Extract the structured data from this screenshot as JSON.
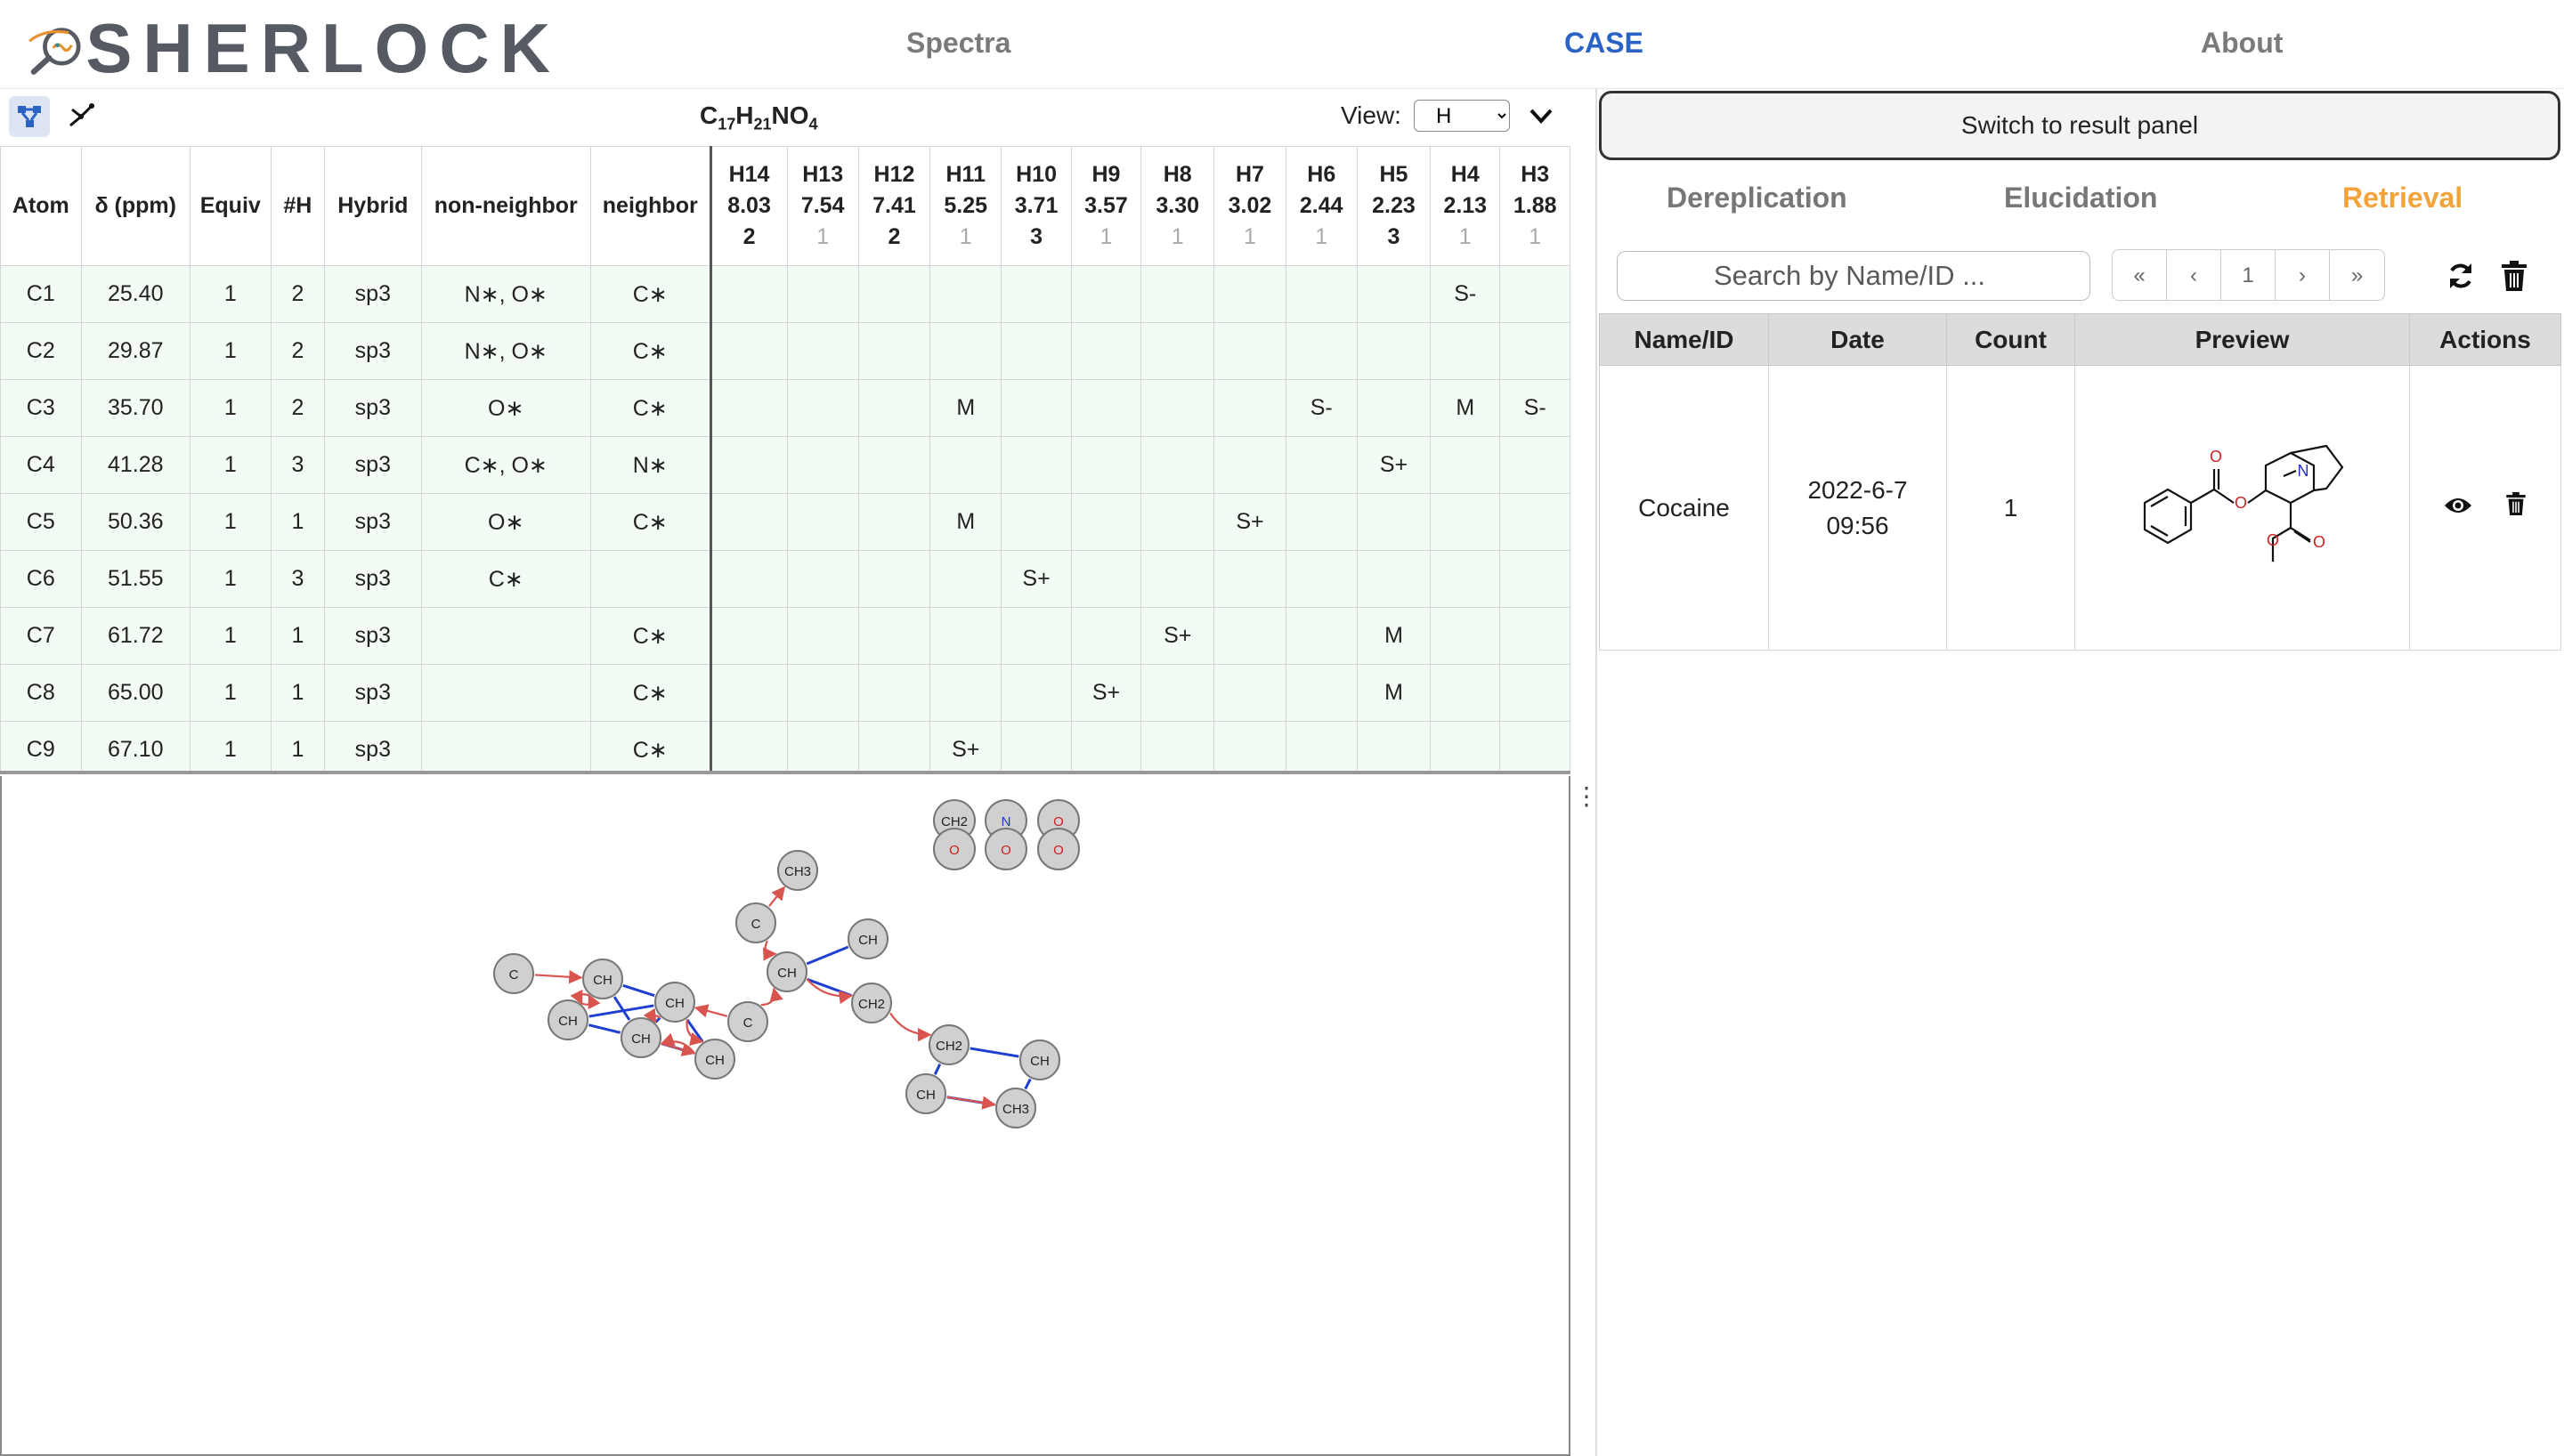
{
  "app": {
    "logo_text": "SHERLOCK",
    "nav": {
      "spectra": "Spectra",
      "case": "CASE",
      "about": "About"
    }
  },
  "toolbar": {
    "icons": [
      "network-graph-icon",
      "share-graph-icon"
    ],
    "formula": {
      "C": "C",
      "c_n": "17",
      "H": "H",
      "h_n": "21",
      "N": "N",
      "O": "O",
      "o_n": "4"
    },
    "view_label": "View:",
    "view_value": "H",
    "view_options": [
      "H"
    ]
  },
  "table": {
    "headers": {
      "atom": "Atom",
      "shift": "δ (ppm)",
      "equiv": "Equiv",
      "nh": "#H",
      "hybrid": "Hybrid",
      "nonneighbor": "non-neighbor",
      "neighbor": "neighbor"
    },
    "h_columns": [
      {
        "label": "H14",
        "shift": "8.03",
        "count": "2",
        "gray": false
      },
      {
        "label": "H13",
        "shift": "7.54",
        "count": "1",
        "gray": true
      },
      {
        "label": "H12",
        "shift": "7.41",
        "count": "2",
        "gray": false
      },
      {
        "label": "H11",
        "shift": "5.25",
        "count": "1",
        "gray": true
      },
      {
        "label": "H10",
        "shift": "3.71",
        "count": "3",
        "gray": false
      },
      {
        "label": "H9",
        "shift": "3.57",
        "count": "1",
        "gray": true
      },
      {
        "label": "H8",
        "shift": "3.30",
        "count": "1",
        "gray": true
      },
      {
        "label": "H7",
        "shift": "3.02",
        "count": "1",
        "gray": true
      },
      {
        "label": "H6",
        "shift": "2.44",
        "count": "1",
        "gray": true
      },
      {
        "label": "H5",
        "shift": "2.23",
        "count": "3",
        "gray": false
      },
      {
        "label": "H4",
        "shift": "2.13",
        "count": "1",
        "gray": true
      },
      {
        "label": "H3",
        "shift": "1.88",
        "count": "1",
        "gray": true
      }
    ],
    "rows": [
      {
        "atom": "C1",
        "shift": "25.40",
        "equiv": "1",
        "nh": "2",
        "hybrid": "sp3",
        "nonneighbor": "N∗, O∗",
        "neighbor": "C∗",
        "cells": [
          "",
          "",
          "",
          "",
          "",
          "",
          "",
          "",
          "",
          "",
          "S-",
          ""
        ]
      },
      {
        "atom": "C2",
        "shift": "29.87",
        "equiv": "1",
        "nh": "2",
        "hybrid": "sp3",
        "nonneighbor": "N∗, O∗",
        "neighbor": "C∗",
        "cells": [
          "",
          "",
          "",
          "",
          "",
          "",
          "",
          "",
          "",
          "",
          "",
          ""
        ]
      },
      {
        "atom": "C3",
        "shift": "35.70",
        "equiv": "1",
        "nh": "2",
        "hybrid": "sp3",
        "nonneighbor": "O∗",
        "neighbor": "C∗",
        "cells": [
          "",
          "",
          "",
          "M",
          "",
          "",
          "",
          "",
          "S-",
          "",
          "M",
          "S-"
        ]
      },
      {
        "atom": "C4",
        "shift": "41.28",
        "equiv": "1",
        "nh": "3",
        "hybrid": "sp3",
        "nonneighbor": "C∗, O∗",
        "neighbor": "N∗",
        "cells": [
          "",
          "",
          "",
          "",
          "",
          "",
          "",
          "",
          "",
          "S+",
          "",
          ""
        ]
      },
      {
        "atom": "C5",
        "shift": "50.36",
        "equiv": "1",
        "nh": "1",
        "hybrid": "sp3",
        "nonneighbor": "O∗",
        "neighbor": "C∗",
        "cells": [
          "",
          "",
          "",
          "M",
          "",
          "",
          "",
          "S+",
          "",
          "",
          "",
          ""
        ]
      },
      {
        "atom": "C6",
        "shift": "51.55",
        "equiv": "1",
        "nh": "3",
        "hybrid": "sp3",
        "nonneighbor": "C∗",
        "neighbor": "",
        "cells": [
          "",
          "",
          "",
          "",
          "S+",
          "",
          "",
          "",
          "",
          "",
          "",
          ""
        ]
      },
      {
        "atom": "C7",
        "shift": "61.72",
        "equiv": "1",
        "nh": "1",
        "hybrid": "sp3",
        "nonneighbor": "",
        "neighbor": "C∗",
        "cells": [
          "",
          "",
          "",
          "",
          "",
          "",
          "S+",
          "",
          "",
          "M",
          "",
          ""
        ]
      },
      {
        "atom": "C8",
        "shift": "65.00",
        "equiv": "1",
        "nh": "1",
        "hybrid": "sp3",
        "nonneighbor": "",
        "neighbor": "C∗",
        "cells": [
          "",
          "",
          "",
          "",
          "",
          "S+",
          "",
          "",
          "",
          "M",
          "",
          ""
        ]
      },
      {
        "atom": "C9",
        "shift": "67.10",
        "equiv": "1",
        "nh": "1",
        "hybrid": "sp3",
        "nonneighbor": "",
        "neighbor": "C∗",
        "cells": [
          "",
          "",
          "",
          "S+",
          "",
          "",
          "",
          "",
          "",
          "",
          "",
          ""
        ]
      }
    ]
  },
  "graph": {
    "palette": [
      {
        "id": "p1",
        "label": "CH2",
        "color": "#222222"
      },
      {
        "id": "p2",
        "label": "N",
        "color": "#2233cc"
      },
      {
        "id": "p3",
        "label": "O",
        "color": "#cc2222"
      },
      {
        "id": "p4",
        "label": "O",
        "color": "#cc2222"
      },
      {
        "id": "p5",
        "label": "O",
        "color": "#cc2222"
      },
      {
        "id": "p6",
        "label": "O",
        "color": "#cc2222"
      }
    ],
    "nodes": [
      {
        "id": "n1",
        "label": "CH3"
      },
      {
        "id": "n2",
        "label": "C"
      },
      {
        "id": "n3",
        "label": "CH"
      },
      {
        "id": "n4",
        "label": "CH"
      },
      {
        "id": "n5",
        "label": "C"
      },
      {
        "id": "n6",
        "label": "CH"
      },
      {
        "id": "n7",
        "label": "CH"
      },
      {
        "id": "n8",
        "label": "CH"
      },
      {
        "id": "n9",
        "label": "C"
      },
      {
        "id": "n10",
        "label": "CH"
      },
      {
        "id": "n11",
        "label": "CH"
      },
      {
        "id": "n12",
        "label": "CH2"
      },
      {
        "id": "n13",
        "label": "CH2"
      },
      {
        "id": "n14",
        "label": "CH"
      },
      {
        "id": "n15",
        "label": "CH"
      },
      {
        "id": "n16",
        "label": "CH3"
      }
    ],
    "colors": {
      "hmbc": "#d9534f",
      "cosy": "#1f3fd1",
      "node_fill": "#d0d0d0",
      "node_stroke": "#777777"
    }
  },
  "right_panel": {
    "switch_label": "Switch to result panel",
    "tabs": {
      "dereplication": "Dereplication",
      "elucidation": "Elucidation",
      "retrieval": "Retrieval"
    },
    "search_placeholder": "Search by Name/ID ...",
    "pager": {
      "first": "«",
      "prev": "‹",
      "page": "1",
      "next": "›",
      "last": "»"
    },
    "columns": {
      "name": "Name/ID",
      "date": "Date",
      "count": "Count",
      "preview": "Preview",
      "actions": "Actions"
    },
    "rows": [
      {
        "name": "Cocaine",
        "date": "2022-6-7",
        "time": "09:56",
        "count": "1",
        "structure_labels": {
          "O1": "O",
          "O2": "O",
          "O3": "O",
          "O4": "O",
          "N": "N"
        }
      }
    ],
    "colors": {
      "active_tab": "#f2a33a",
      "nav_active": "#2b63c5"
    }
  }
}
